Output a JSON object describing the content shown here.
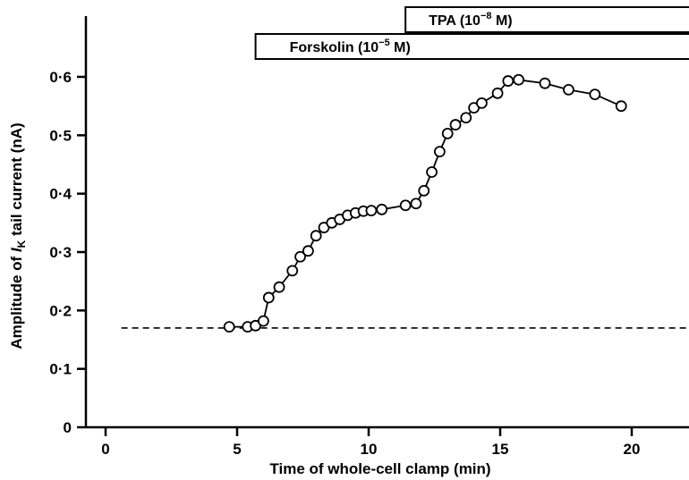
{
  "chart_data": {
    "type": "line",
    "xlabel": "Time of whole-cell clamp (min)",
    "ylabel_prefix": "Amplitude of ",
    "ylabel_italic": "I",
    "ylabel_sub": "K",
    "ylabel_suffix": " tail current (nA)",
    "xlim": [
      0,
      21
    ],
    "ylim": [
      0,
      0.6
    ],
    "x_ticks": [
      0,
      5,
      10,
      15,
      20
    ],
    "x_tick_labels": [
      "0",
      "5",
      "10",
      "15",
      "20"
    ],
    "y_ticks": [
      0,
      0.1,
      0.2,
      0.3,
      0.4,
      0.5,
      0.6
    ],
    "y_tick_labels": [
      "0",
      "0·1",
      "0·2",
      "0·3",
      "0·4",
      "0·5",
      "0·6"
    ],
    "baseline": {
      "y": 0.17,
      "x_start": 0.6,
      "x_end": 21,
      "style": "dashed"
    },
    "series": [
      {
        "marker": "open-circle",
        "points": [
          [
            4.7,
            0.172
          ],
          [
            5.4,
            0.172
          ],
          [
            5.7,
            0.174
          ],
          [
            6.0,
            0.182
          ],
          [
            6.2,
            0.222
          ],
          [
            6.6,
            0.24
          ],
          [
            7.1,
            0.268
          ],
          [
            7.4,
            0.292
          ],
          [
            7.7,
            0.302
          ],
          [
            8.0,
            0.328
          ],
          [
            8.3,
            0.342
          ],
          [
            8.6,
            0.35
          ],
          [
            8.9,
            0.356
          ],
          [
            9.2,
            0.363
          ],
          [
            9.5,
            0.367
          ],
          [
            9.8,
            0.37
          ],
          [
            10.1,
            0.371
          ],
          [
            10.5,
            0.373
          ],
          [
            11.4,
            0.38
          ],
          [
            11.8,
            0.383
          ],
          [
            12.1,
            0.405
          ],
          [
            12.4,
            0.437
          ],
          [
            12.7,
            0.472
          ],
          [
            13.0,
            0.503
          ],
          [
            13.3,
            0.518
          ],
          [
            13.7,
            0.53
          ],
          [
            14.0,
            0.547
          ],
          [
            14.3,
            0.555
          ],
          [
            14.9,
            0.572
          ],
          [
            15.3,
            0.593
          ],
          [
            15.7,
            0.595
          ],
          [
            16.7,
            0.589
          ],
          [
            17.6,
            0.578
          ],
          [
            18.6,
            0.57
          ],
          [
            19.6,
            0.55
          ]
        ]
      }
    ],
    "treatment_bars": [
      {
        "label_main": "Forskolin (10",
        "label_exp": "−5",
        "label_unit": " M)",
        "x_start": 5.7,
        "x_end": 21
      },
      {
        "label_main": "TPA (10",
        "label_exp": "−8",
        "label_unit": " M)",
        "x_start": 11.4,
        "x_end": 21
      }
    ]
  }
}
